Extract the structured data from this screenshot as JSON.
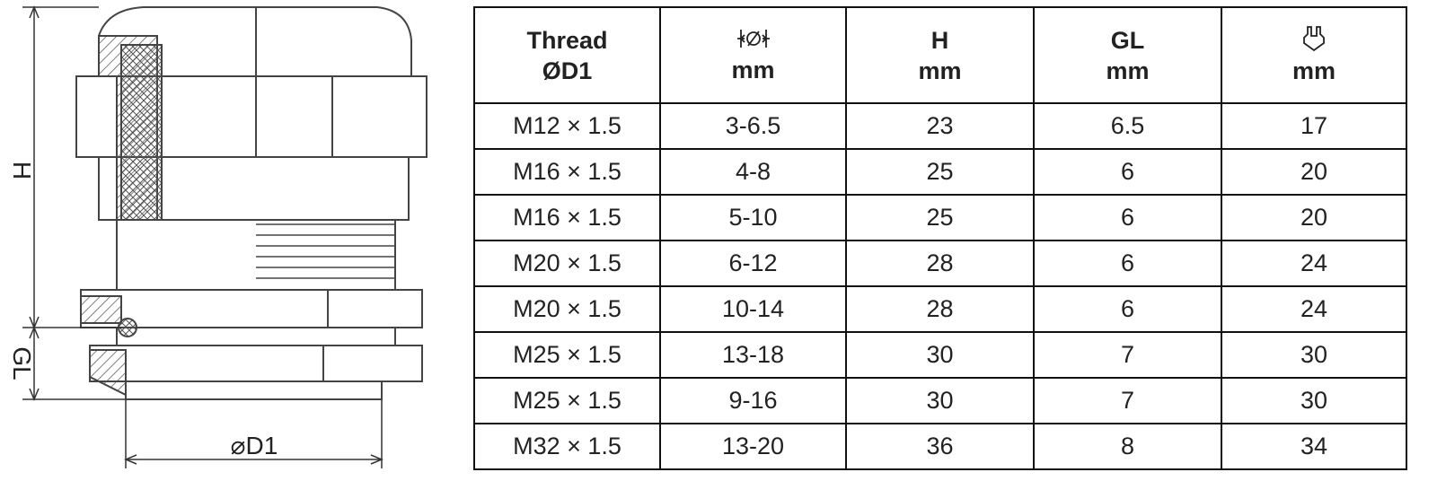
{
  "drawing": {
    "height_label": "H",
    "gl_label": "GL",
    "diameter_label": "⌀D1"
  },
  "table": {
    "header": [
      [
        "Thread",
        "ØD1"
      ],
      [
        "mm"
      ],
      [
        "H",
        "mm"
      ],
      [
        "GL",
        "mm"
      ],
      [
        "mm"
      ]
    ],
    "rows": [
      [
        "M12 × 1.5",
        "3-6.5",
        "23",
        "6.5",
        "17"
      ],
      [
        "M16 × 1.5",
        "4-8",
        "25",
        "6",
        "20"
      ],
      [
        "M16 × 1.5",
        "5-10",
        "25",
        "6",
        "20"
      ],
      [
        "M20 × 1.5",
        "6-12",
        "28",
        "6",
        "24"
      ],
      [
        "M20 × 1.5",
        "10-14",
        "28",
        "6",
        "24"
      ],
      [
        "M25 × 1.5",
        "13-18",
        "30",
        "7",
        "30"
      ],
      [
        "M25 × 1.5",
        "9-16",
        "30",
        "7",
        "30"
      ],
      [
        "M32 × 1.5",
        "13-20",
        "36",
        "8",
        "34"
      ]
    ]
  }
}
